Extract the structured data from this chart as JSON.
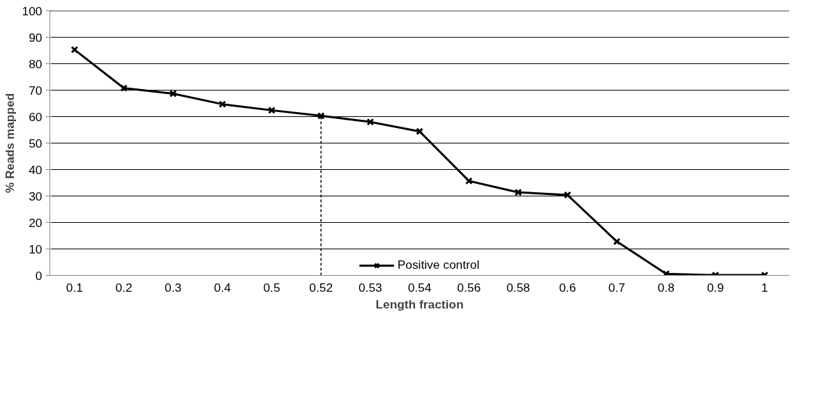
{
  "chart_data": {
    "type": "line",
    "xlabel": "Length fraction",
    "ylabel": "% Reads mapped",
    "categories": [
      "0.1",
      "0.2",
      "0.3",
      "0.4",
      "0.5",
      "0.52",
      "0.53",
      "0.54",
      "0.56",
      "0.58",
      "0.6",
      "0.7",
      "0.8",
      "0.9",
      "1"
    ],
    "series": [
      {
        "name": "Positive control",
        "color": "#000000",
        "values": [
          85.3,
          70.8,
          68.7,
          64.7,
          62.4,
          60.3,
          58.0,
          54.4,
          35.7,
          31.4,
          30.4,
          12.8,
          0.6,
          0.1,
          0.1
        ]
      }
    ],
    "ylim": [
      0,
      100
    ],
    "yticks": [
      0,
      10,
      20,
      30,
      40,
      50,
      60,
      70,
      80,
      90,
      100
    ],
    "grid": "y",
    "legend": "bottom",
    "marker": "cross",
    "line_style": "solid",
    "ref_lines": [
      {
        "axis": "x",
        "value": "0.52",
        "color": "#000000",
        "line_style": "dashed"
      }
    ]
  }
}
